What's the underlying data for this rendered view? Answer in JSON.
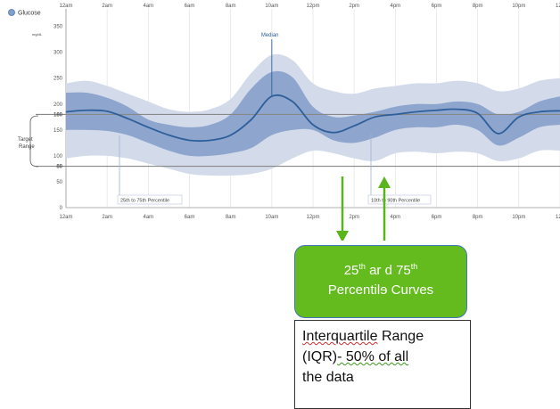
{
  "chart_data": {
    "type": "area",
    "legend_label": "Glucose",
    "y_unit": "mg/dL",
    "y_ticks": [
      0,
      50,
      100,
      150,
      200,
      250,
      300,
      350
    ],
    "ylim": [
      0,
      370
    ],
    "x_ticks_top": [
      "12am",
      "2am",
      "4am",
      "6am",
      "8am",
      "10am",
      "12pm",
      "2pm",
      "4pm",
      "6pm",
      "8pm",
      "10pm",
      "12a"
    ],
    "x_ticks_bottom": [
      "12am",
      "2am",
      "4am",
      "6am",
      "8am",
      "10am",
      "12pm",
      "2pm",
      "4pm",
      "6pm",
      "8pm",
      "10pm",
      "12a"
    ],
    "x_hours": [
      0,
      1,
      2,
      3,
      4,
      5,
      6,
      7,
      8,
      9,
      10,
      11,
      12,
      13,
      14,
      15,
      16,
      17,
      18,
      19,
      20,
      21,
      22,
      23,
      24
    ],
    "series": [
      {
        "name": "10th to 90th Percentile",
        "role": "p10",
        "values": [
          95,
          100,
          100,
          95,
          85,
          75,
          65,
          62,
          62,
          65,
          75,
          95,
          110,
          105,
          95,
          90,
          105,
          108,
          105,
          108,
          105,
          90,
          95,
          110,
          110
        ]
      },
      {
        "name": "10th to 90th Percentile",
        "role": "p90",
        "values": [
          240,
          245,
          235,
          220,
          205,
          190,
          185,
          190,
          210,
          260,
          295,
          285,
          240,
          225,
          220,
          230,
          235,
          240,
          240,
          245,
          240,
          225,
          230,
          245,
          250
        ]
      },
      {
        "name": "25th to 75th Percentile",
        "role": "p25",
        "values": [
          150,
          150,
          148,
          140,
          125,
          110,
          100,
          100,
          105,
          115,
          140,
          150,
          150,
          130,
          125,
          135,
          150,
          155,
          155,
          160,
          150,
          120,
          135,
          155,
          160
        ]
      },
      {
        "name": "25th to 75th Percentile",
        "role": "p75",
        "values": [
          222,
          222,
          212,
          195,
          170,
          160,
          155,
          160,
          180,
          230,
          262,
          252,
          195,
          175,
          178,
          185,
          195,
          200,
          200,
          205,
          200,
          180,
          185,
          205,
          215
        ]
      },
      {
        "name": "Median",
        "role": "median",
        "values": [
          185,
          188,
          186,
          172,
          155,
          140,
          130,
          130,
          140,
          170,
          215,
          205,
          160,
          145,
          158,
          175,
          180,
          185,
          188,
          190,
          182,
          143,
          175,
          185,
          187
        ]
      }
    ],
    "target_range": {
      "label": "Target Range",
      "low": 80,
      "high": 180
    },
    "median_label": "Median",
    "band_labels": {
      "inner": "25th to 75th Percentile",
      "outer": "10th to 90th Percentile"
    },
    "colors": {
      "outer_band": "#d3dbea",
      "inner_band": "#8ea6ce",
      "median": "#2e5f9a",
      "target_line": "#888888",
      "grid": "#e6e6e6",
      "arrow": "#59b51c"
    }
  },
  "callouts": {
    "green_base1": "25",
    "green_sup1": "th",
    "green_mid": " ar d 75",
    "green_sup2": "th",
    "green_line2a": "Percentil",
    "green_line2b": "ɘ",
    "green_line2c": " Curves",
    "iqr_word": "Interquartile",
    "iqr_rest1": " Range",
    "iqr_line2a": "(IQR)",
    "iqr_line2b": "- 50% of all",
    "iqr_line3": "the data"
  }
}
